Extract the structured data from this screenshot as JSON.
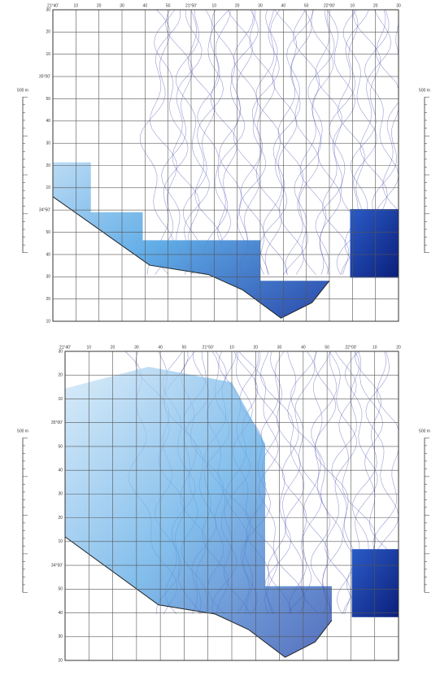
{
  "maps": [
    {
      "top_labels": [
        "21°40'",
        "10",
        "20",
        "30",
        "40",
        "50",
        "21°50'",
        "10",
        "20",
        "30",
        "40",
        "50",
        "22°00'",
        "10",
        "20",
        "30"
      ],
      "left_labels": [
        "30",
        "20",
        "10",
        "35°00'",
        "50",
        "40",
        "30",
        "20",
        "10",
        "34°50'",
        "50",
        "40",
        "30",
        "20",
        "10"
      ],
      "scale_label": "500 m"
    },
    {
      "top_labels": [
        "21°40'",
        "10",
        "20",
        "30",
        "40",
        "50",
        "21°50'",
        "10",
        "20",
        "30",
        "40",
        "50",
        "22°00'",
        "10",
        "20"
      ],
      "left_labels": [
        "30",
        "20",
        "10",
        "35°00'",
        "50",
        "40",
        "30",
        "20",
        "10",
        "34°50'",
        "50",
        "40",
        "30",
        "20"
      ],
      "scale_label": "500 m"
    }
  ]
}
